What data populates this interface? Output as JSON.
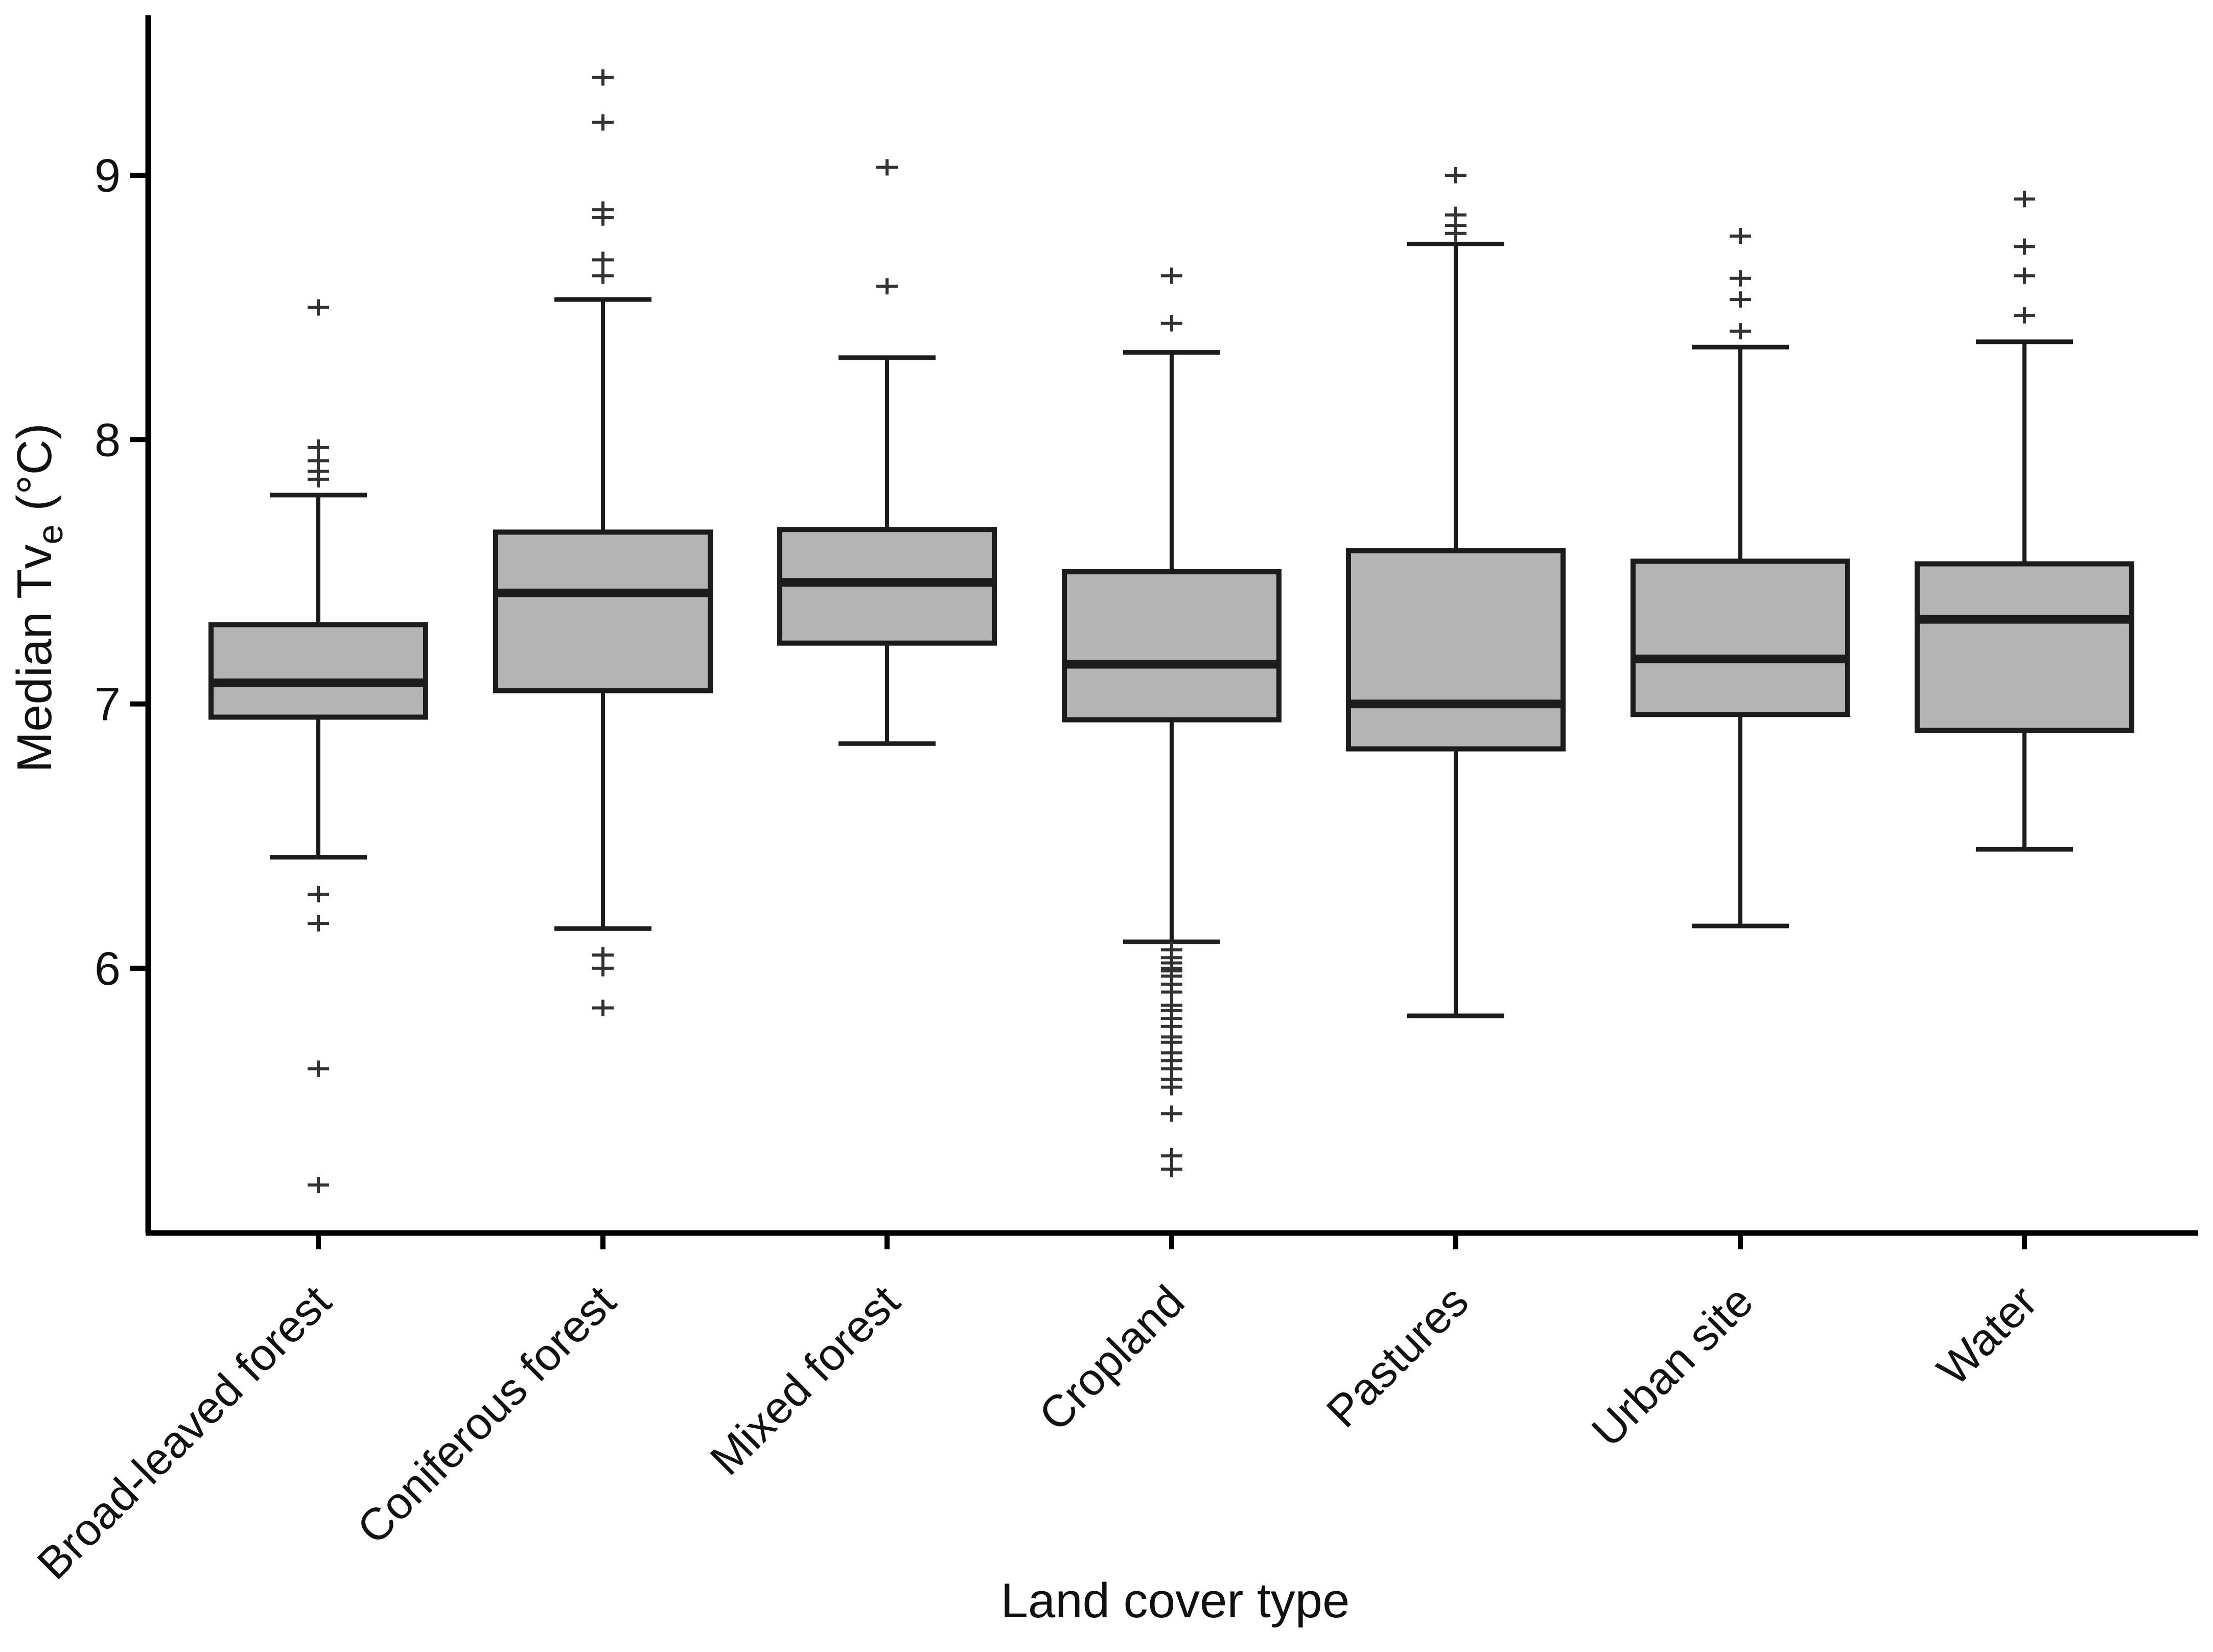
{
  "figure": {
    "background": "#ffffff"
  },
  "colors": {
    "box_fill": "#b4b4b4",
    "box_stroke": "#1c1c1c",
    "median_stroke": "#1c1c1c",
    "whisker_stroke": "#1c1c1c",
    "outlier_stroke": "#333333",
    "axis_stroke": "#000000",
    "text": "#111111"
  },
  "chart_data": {
    "type": "boxplot",
    "title": "",
    "xlabel": "Land cover type",
    "ylabel": "Median Tve (°C)",
    "ylabel_parts": {
      "main": "Median Tv",
      "sub": "e",
      "unit": " (°C)"
    },
    "ylim": [
      5.0,
      9.6
    ],
    "yticks": [
      6,
      7,
      8,
      9
    ],
    "grid": false,
    "legend": "none",
    "categories": [
      "Broad-leaved forest",
      "Coniferous forest",
      "Mixed forest",
      "Cropland",
      "Pastures",
      "Urban site",
      "Water"
    ],
    "series": [
      {
        "name": "Broad-leaved forest",
        "whisker_low": 6.42,
        "q1": 6.95,
        "median": 7.08,
        "q3": 7.3,
        "whisker_high": 7.79,
        "outliers_above": [
          7.85,
          7.88,
          7.92,
          7.97,
          8.5
        ],
        "outliers_below": [
          6.28,
          6.17,
          5.62,
          5.18
        ]
      },
      {
        "name": "Coniferous forest",
        "whisker_low": 6.15,
        "q1": 7.05,
        "median": 7.42,
        "q3": 7.65,
        "whisker_high": 8.53,
        "outliers_above": [
          8.62,
          8.68,
          8.84,
          8.87,
          9.2,
          9.37
        ],
        "outliers_below": [
          6.05,
          6.0,
          5.85
        ]
      },
      {
        "name": "Mixed forest",
        "whisker_low": 6.85,
        "q1": 7.23,
        "median": 7.46,
        "q3": 7.66,
        "whisker_high": 8.31,
        "outliers_above": [
          8.58,
          9.03
        ],
        "outliers_below": []
      },
      {
        "name": "Cropland",
        "whisker_low": 6.1,
        "q1": 6.94,
        "median": 7.15,
        "q3": 7.5,
        "whisker_high": 8.33,
        "outliers_above": [
          8.44,
          8.62
        ],
        "outliers_below": [
          6.07,
          6.04,
          6.02,
          6.0,
          5.99,
          5.97,
          5.94,
          5.91,
          5.86,
          5.84,
          5.81,
          5.78,
          5.74,
          5.72,
          5.68,
          5.65,
          5.62,
          5.58,
          5.55,
          5.45,
          5.29,
          5.24
        ]
      },
      {
        "name": "Pastures",
        "whisker_low": 5.82,
        "q1": 6.83,
        "median": 7.0,
        "q3": 7.58,
        "whisker_high": 8.74,
        "outliers_above": [
          8.78,
          8.81,
          8.85,
          9.0
        ],
        "outliers_below": []
      },
      {
        "name": "Urban site",
        "whisker_low": 6.16,
        "q1": 6.96,
        "median": 7.17,
        "q3": 7.54,
        "whisker_high": 8.35,
        "outliers_above": [
          8.41,
          8.53,
          8.61,
          8.77
        ],
        "outliers_below": []
      },
      {
        "name": "Water",
        "whisker_low": 6.45,
        "q1": 6.9,
        "median": 7.32,
        "q3": 7.53,
        "whisker_high": 8.37,
        "outliers_above": [
          8.47,
          8.62,
          8.73,
          8.91
        ],
        "outliers_below": []
      }
    ]
  }
}
